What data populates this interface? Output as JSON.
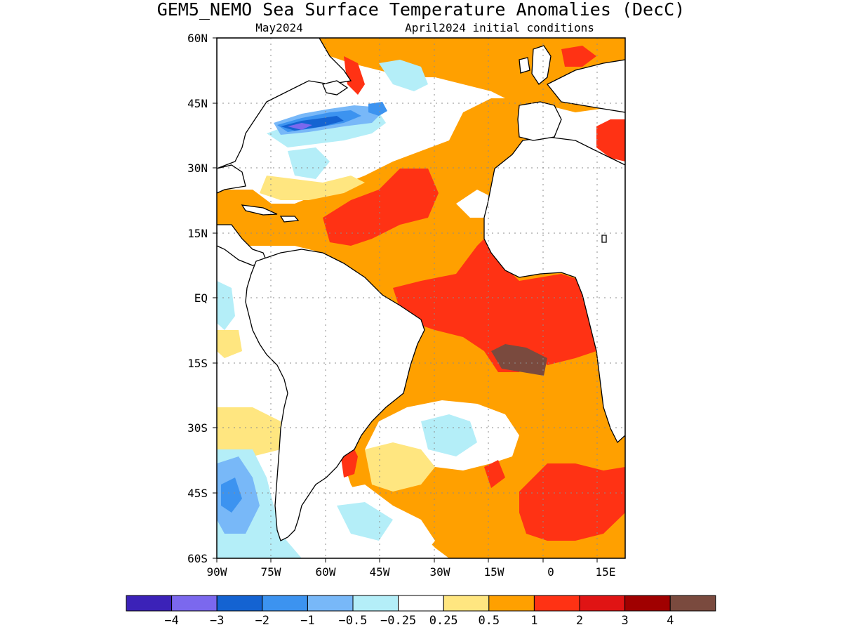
{
  "title": "GEM5_NEMO Sea Surface Temperature Anomalies (DecC)",
  "subtitle_left": "May2024",
  "subtitle_right": "April2024 initial conditions",
  "axes": {
    "lat_ticks": [
      "60N",
      "45N",
      "30N",
      "15N",
      "EQ",
      "15S",
      "30S",
      "45S",
      "60S"
    ],
    "lon_ticks": [
      "90W",
      "75W",
      "60W",
      "45W",
      "30W",
      "15W",
      "0",
      "15E"
    ]
  },
  "colorbar": {
    "colors": [
      "#3b22b8",
      "#7b68ee",
      "#1463d2",
      "#3c93f0",
      "#78b8f8",
      "#b4eef8",
      "#ffffff",
      "#ffe680",
      "#ffa000",
      "#ff3214",
      "#e01414",
      "#a00000",
      "#7a4a3e"
    ],
    "labels": [
      "−4",
      "−3",
      "−2",
      "−1",
      "−0.5",
      "−0.25",
      "0.25",
      "0.5",
      "1",
      "2",
      "3",
      "4"
    ]
  }
}
